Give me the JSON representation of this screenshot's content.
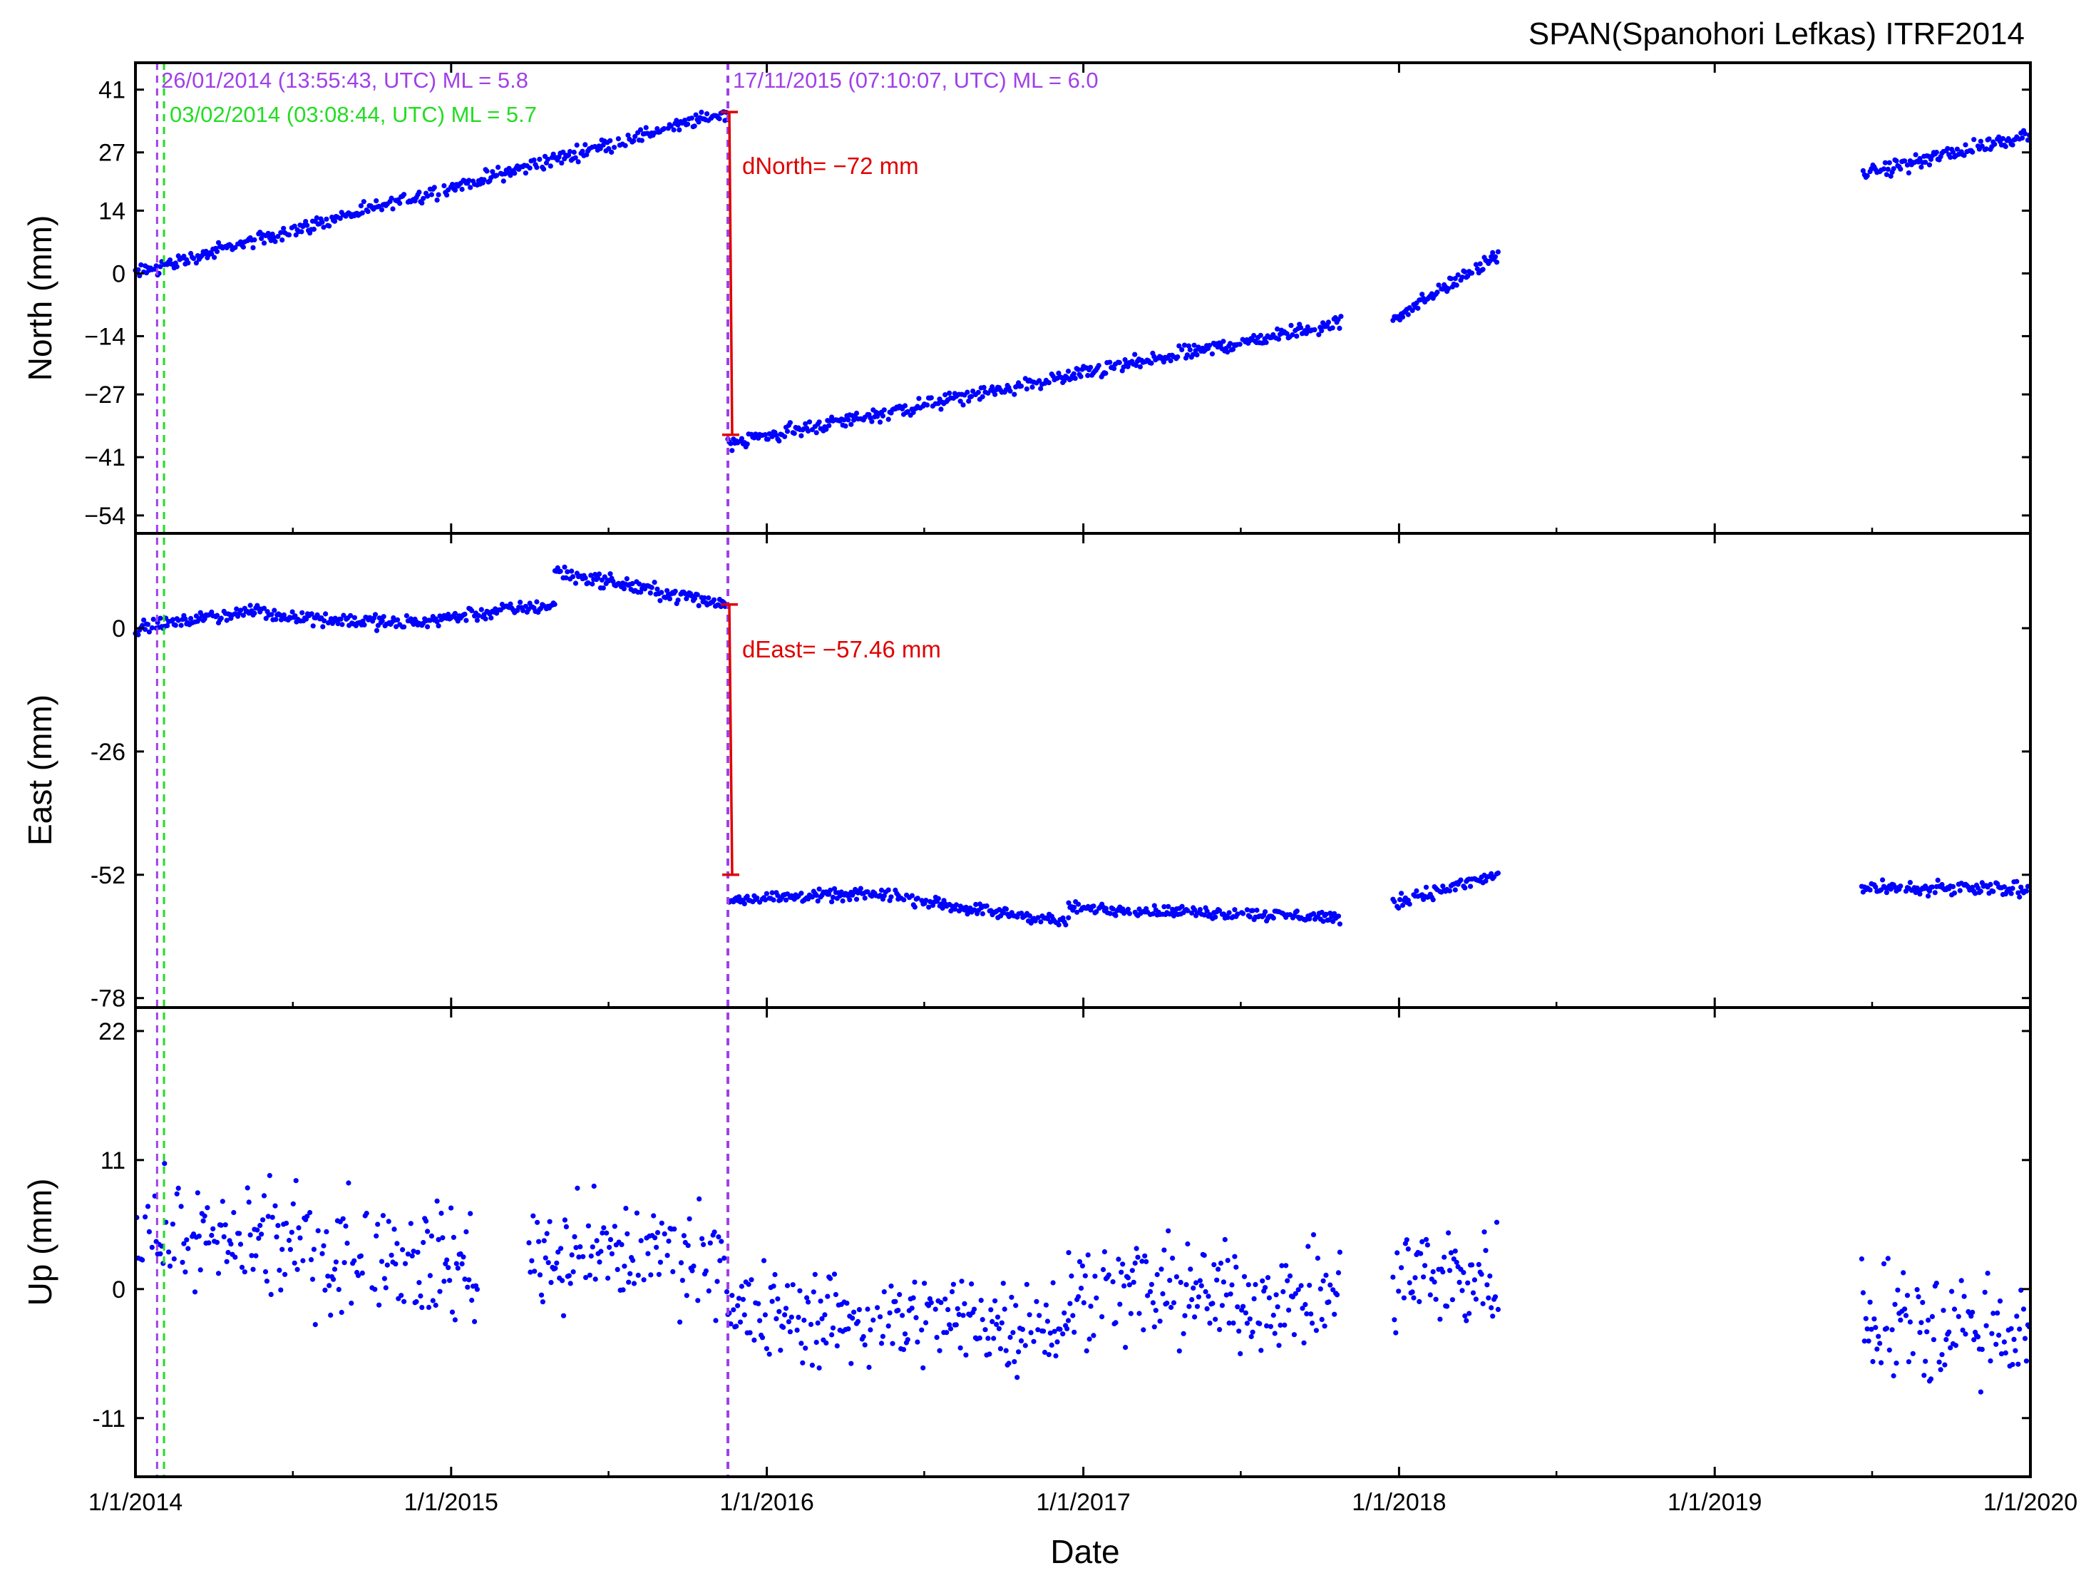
{
  "chart_data": {
    "type": "scatter",
    "title": "SPAN(Spanohori Lefkas) ITRF2014",
    "xlabel": "Date",
    "x_tick_labels": [
      "1/1/2014",
      "1/1/2015",
      "1/1/2016",
      "1/1/2017",
      "1/1/2018",
      "1/1/2019",
      "1/1/2020"
    ],
    "xlim": [
      "2014-01-01",
      "2020-01-01"
    ],
    "point_color": "#0000ff",
    "data_gaps": [
      [
        "2018-04-27",
        "2019-06-20"
      ]
    ],
    "events": [
      {
        "date": "2014-01-26",
        "label": "26/01/2014 (13:55:43, UTC) ML = 5.8",
        "color": "#a040e8"
      },
      {
        "date": "2014-02-03",
        "label": "03/02/2014 (03:08:44, UTC) ML = 5.7",
        "color": "#22dd22"
      },
      {
        "date": "2015-11-17",
        "label": "17/11/2015 (07:10:07, UTC) ML = 6.0",
        "color": "#a040e8"
      }
    ],
    "panels": [
      {
        "name": "north",
        "ylabel": "North (mm)",
        "ylim": [
          -58,
          47
        ],
        "yticks": [
          41,
          27,
          14,
          0,
          -14,
          -27,
          -41,
          -54
        ],
        "ytick_labels": [
          "41",
          "27",
          "14",
          "0",
          "−14",
          "−27",
          "−41",
          "−54"
        ],
        "offset": {
          "label": "dNorth= −72 mm",
          "date": "2015-11-17",
          "from": 36,
          "to": -36,
          "color": "#e00000"
        },
        "series": [
          {
            "start": "2014-01-01",
            "end": "2015-11-17",
            "y0": 0,
            "y1": 36,
            "noise": 1.3
          },
          {
            "start": "2015-11-17",
            "end": "2017-10-26",
            "y0": -38,
            "y1": -11,
            "noise": 1.3
          },
          {
            "start": "2017-12-25",
            "end": "2018-04-27",
            "y0": -10,
            "y1": 4,
            "noise": 1.3
          },
          {
            "start": "2019-06-20",
            "end": "2020-01-01",
            "y0": 22,
            "y1": 31,
            "noise": 1.3
          }
        ]
      },
      {
        "name": "east",
        "ylabel": "East (mm)",
        "ylim": [
          -80,
          20
        ],
        "yticks": [
          0,
          -26,
          -52,
          -78
        ],
        "ytick_labels": [
          "0",
          "-26",
          "-52",
          "-78"
        ],
        "offset": {
          "label": "dEast= −57.46 mm",
          "date": "2015-11-17",
          "from": 5,
          "to": -52,
          "color": "#e00000"
        },
        "series": [
          {
            "start": "2014-01-01",
            "end": "2014-06-01",
            "y0": 0,
            "y1": 4,
            "noise": 1.0
          },
          {
            "start": "2014-06-01",
            "end": "2014-11-01",
            "y0": 3,
            "y1": 1,
            "noise": 1.2
          },
          {
            "start": "2014-11-01",
            "end": "2015-05-01",
            "y0": 1,
            "y1": 5,
            "noise": 1.2
          },
          {
            "start": "2015-05-01",
            "end": "2015-11-17",
            "y0": 12,
            "y1": 5,
            "noise": 1.2
          },
          {
            "start": "2015-11-17",
            "end": "2016-06-01",
            "y0": -57,
            "y1": -56,
            "noise": 1.0
          },
          {
            "start": "2016-06-01",
            "end": "2016-12-15",
            "y0": -57,
            "y1": -62,
            "noise": 1.0
          },
          {
            "start": "2016-12-15",
            "end": "2017-10-26",
            "y0": -59,
            "y1": -61,
            "noise": 1.0
          },
          {
            "start": "2017-12-25",
            "end": "2018-04-27",
            "y0": -58,
            "y1": -52,
            "noise": 1.2
          },
          {
            "start": "2019-06-20",
            "end": "2020-01-01",
            "y0": -55,
            "y1": -55,
            "noise": 1.2
          }
        ]
      },
      {
        "name": "up",
        "ylabel": "Up (mm)",
        "ylim": [
          -16,
          24
        ],
        "yticks": [
          22,
          11,
          0,
          -11
        ],
        "ytick_labels": [
          "22",
          "11",
          "0",
          "-11"
        ],
        "series": [
          {
            "start": "2014-01-01",
            "end": "2015-02-01",
            "y0": 5,
            "y1": 2,
            "noise": 4
          },
          {
            "start": "2015-04-01",
            "end": "2015-11-17",
            "y0": 3,
            "y1": 3,
            "noise": 4
          },
          {
            "start": "2015-11-17",
            "end": "2016-12-15",
            "y0": -2,
            "y1": -3,
            "noise": 3.5
          },
          {
            "start": "2016-12-15",
            "end": "2017-10-26",
            "y0": 0,
            "y1": -1,
            "noise": 3.5
          },
          {
            "start": "2017-12-25",
            "end": "2018-04-27",
            "y0": 1,
            "y1": 1,
            "noise": 4
          },
          {
            "start": "2019-06-20",
            "end": "2020-01-01",
            "y0": -2,
            "y1": -4,
            "noise": 4
          }
        ]
      }
    ]
  }
}
